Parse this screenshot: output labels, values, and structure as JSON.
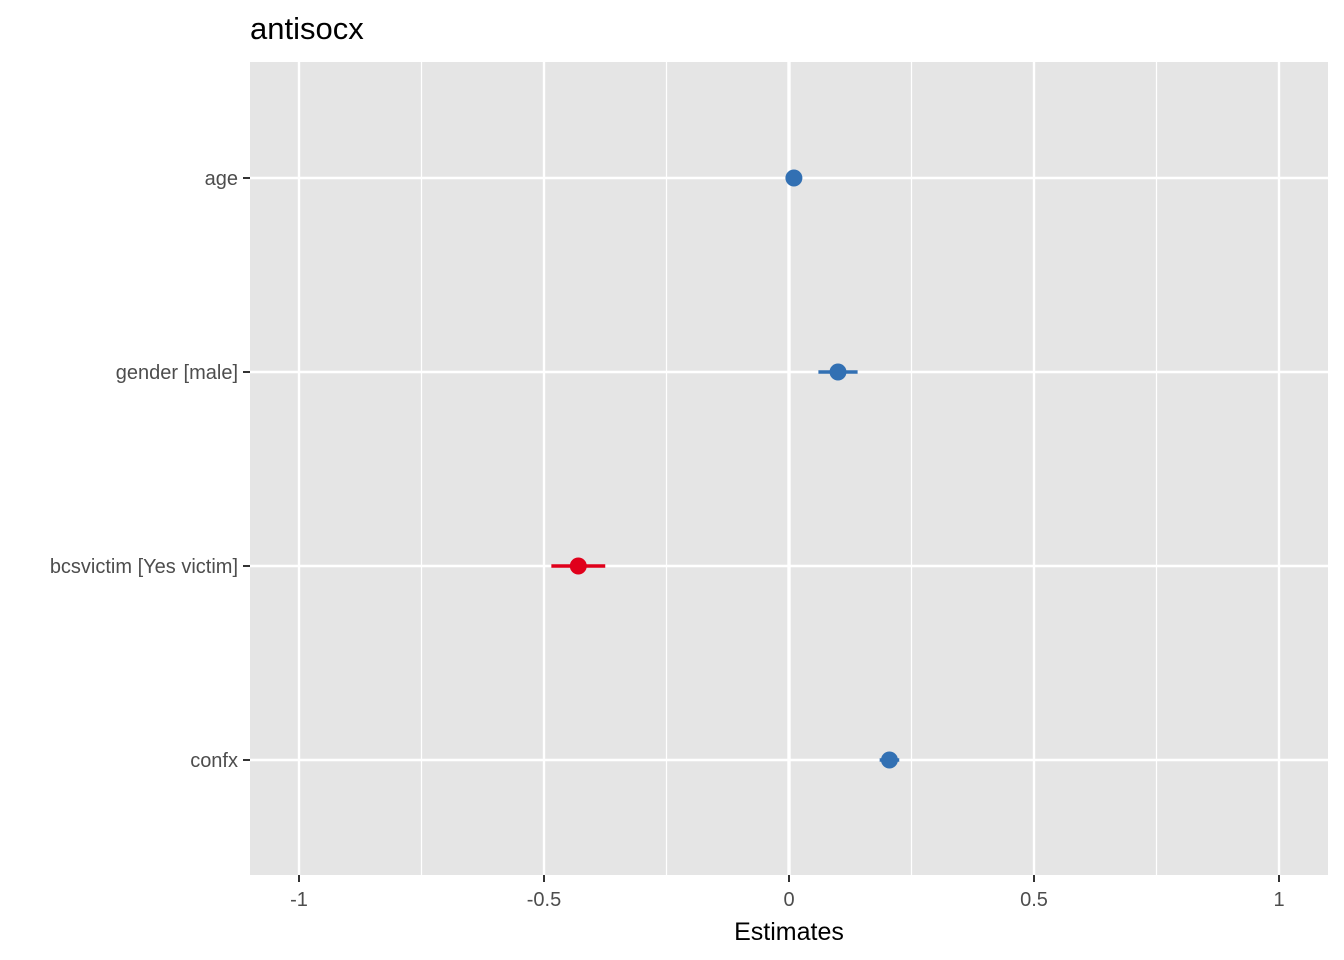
{
  "chart_data": {
    "type": "forest",
    "title": "antisocx",
    "xlabel": "Estimates",
    "ylabel": "",
    "xlim": [
      -1.1,
      1.1
    ],
    "x_ticks": [
      -1,
      -0.5,
      0,
      0.5,
      1
    ],
    "x_tick_labels": [
      "-1",
      "-0.5",
      "0",
      "0.5",
      "1"
    ],
    "grid": true,
    "colors": {
      "positive": "#3270b3",
      "negative": "#e0001b",
      "panel": "#e5e5e5",
      "grid": "#ffffff"
    },
    "terms": [
      {
        "label": "age",
        "estimate": 0.01,
        "ci_low": 0.0,
        "ci_high": 0.015,
        "sign": "positive"
      },
      {
        "label": "gender [male]",
        "estimate": 0.1,
        "ci_low": 0.06,
        "ci_high": 0.14,
        "sign": "positive"
      },
      {
        "label": "bcsvictim [Yes victim]",
        "estimate": -0.43,
        "ci_low": -0.485,
        "ci_high": -0.375,
        "sign": "negative"
      },
      {
        "label": "confx",
        "estimate": 0.205,
        "ci_low": 0.185,
        "ci_high": 0.225,
        "sign": "positive"
      }
    ]
  }
}
